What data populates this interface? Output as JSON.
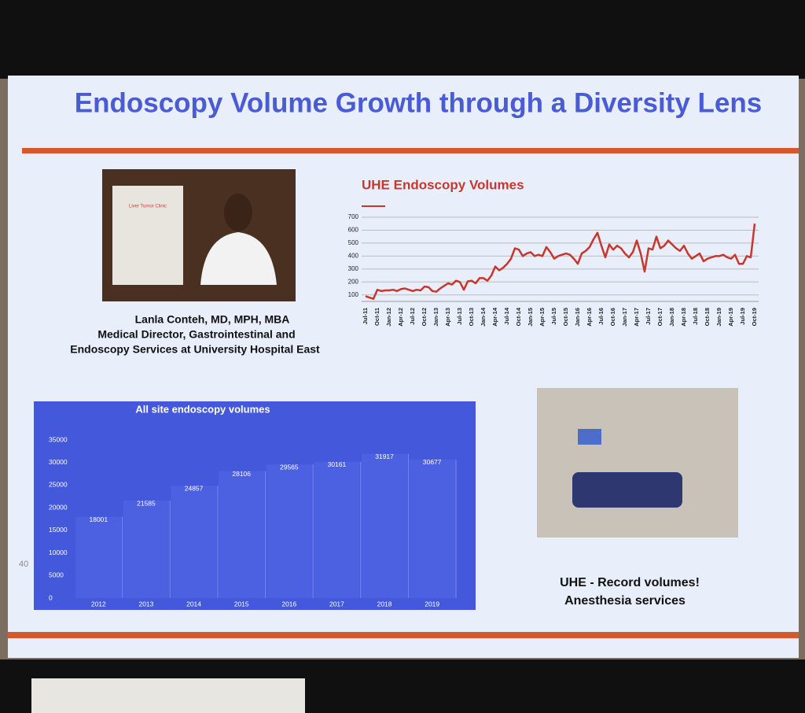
{
  "slide": {
    "title": "Endoscopy  Volume Growth through a Diversity Lens",
    "page_number": "40",
    "photo_sign": "Liver Tumor Clinic",
    "caption": [
      "Lanla Conteh, MD, MPH, MBA",
      "Medical Director, Gastrointestinal and",
      "Endoscopy Services at University Hospital East"
    ],
    "note": [
      "UHE - Record volumes!",
      "Anesthesia services"
    ]
  },
  "chart_data": [
    {
      "type": "line",
      "title": "UHE Endoscopy Volumes",
      "color": "#c8372d",
      "grid": true,
      "ylim": [
        50,
        700
      ],
      "yticks": [
        100,
        200,
        300,
        400,
        500,
        600,
        700
      ],
      "categories": [
        "Jul-11",
        null,
        null,
        "Oct-11",
        null,
        null,
        "Jan-12",
        null,
        null,
        "Apr-12",
        null,
        null,
        "Jul-12",
        null,
        null,
        "Oct-12",
        null,
        null,
        "Jan-13",
        null,
        null,
        "Apr-13",
        null,
        null,
        "Jul-13",
        null,
        null,
        "Oct-13",
        null,
        null,
        "Jan-14",
        null,
        null,
        "Apr-14",
        null,
        null,
        "Jul-14",
        null,
        null,
        "Oct-14",
        null,
        null,
        "Jan-15",
        null,
        null,
        "Apr-15",
        null,
        null,
        "Jul-15",
        null,
        null,
        "Oct-15",
        null,
        null,
        "Jan-16",
        null,
        null,
        "Apr-16",
        null,
        null,
        "Jul-16",
        null,
        null,
        "Oct-16",
        null,
        null,
        "Jan-17",
        null,
        null,
        "Apr-17",
        null,
        null,
        "Jul-17",
        null,
        null,
        "Oct-17",
        null,
        null,
        "Jan-18",
        null,
        null,
        "Apr-18",
        null,
        null,
        "Jul-18",
        null,
        null,
        "Oct-18",
        null,
        null,
        "Jan-19",
        null,
        null,
        "Apr-19",
        null,
        null,
        "Jul-19",
        null,
        null,
        "Oct-19"
      ],
      "values": [
        90,
        80,
        70,
        140,
        130,
        135,
        135,
        140,
        130,
        145,
        150,
        140,
        130,
        140,
        135,
        165,
        160,
        130,
        125,
        150,
        170,
        190,
        180,
        210,
        200,
        140,
        205,
        210,
        190,
        230,
        230,
        210,
        250,
        320,
        290,
        310,
        340,
        380,
        460,
        450,
        400,
        420,
        430,
        400,
        410,
        400,
        470,
        430,
        380,
        400,
        410,
        420,
        410,
        380,
        340,
        420,
        440,
        470,
        530,
        580,
        480,
        390,
        490,
        450,
        480,
        460,
        420,
        390,
        430,
        520,
        420,
        280,
        460,
        450,
        550,
        460,
        480,
        520,
        490,
        460,
        440,
        480,
        420,
        380,
        400,
        420,
        360,
        380,
        390,
        400,
        400,
        410,
        390,
        380,
        410,
        340,
        340,
        400,
        390,
        650
      ]
    },
    {
      "type": "bar",
      "title": "All site endoscopy volumes",
      "color": "#4c60e2",
      "ylim": [
        0,
        35000
      ],
      "yticks": [
        0,
        5000,
        10000,
        15000,
        20000,
        25000,
        30000,
        35000
      ],
      "categories": [
        "2012",
        "2013",
        "2014",
        "2015",
        "2016",
        "2017",
        "2018",
        "2019"
      ],
      "values": [
        18001,
        21585,
        24857,
        28106,
        29565,
        30161,
        31917,
        30677
      ]
    }
  ]
}
